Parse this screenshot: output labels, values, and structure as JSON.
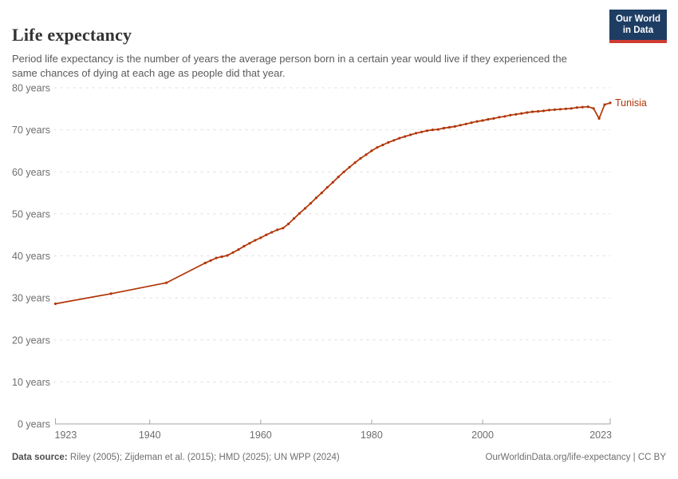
{
  "header": {
    "title": "Life expectancy",
    "subtitle": "Period life expectancy is the number of years the average person born in a certain year would live if they experienced the same chances of dying at each age as people did that year.",
    "logo": {
      "line1": "Our World",
      "line2": "in Data"
    }
  },
  "chart_data": {
    "type": "line",
    "title": "Life expectancy",
    "xlabel": "",
    "ylabel": "",
    "xlim": [
      1923,
      2023
    ],
    "ylim": [
      0,
      80
    ],
    "x_ticks": [
      1923,
      1940,
      1960,
      1980,
      2000,
      2023
    ],
    "y_ticks": [
      0,
      10,
      20,
      30,
      40,
      50,
      60,
      70,
      80
    ],
    "y_tick_suffix": " years",
    "grid": "horizontal-dashed",
    "legend_position": "end-of-line",
    "series": [
      {
        "name": "Tunisia",
        "color": "#b13507",
        "points": [
          [
            1923,
            28.6
          ],
          [
            1933,
            31.0
          ],
          [
            1943,
            33.6
          ],
          [
            1950,
            38.3
          ],
          [
            1951,
            38.9
          ],
          [
            1952,
            39.5
          ],
          [
            1953,
            39.8
          ],
          [
            1954,
            40.1
          ],
          [
            1955,
            40.8
          ],
          [
            1956,
            41.5
          ],
          [
            1957,
            42.3
          ],
          [
            1958,
            43.0
          ],
          [
            1959,
            43.7
          ],
          [
            1960,
            44.3
          ],
          [
            1961,
            45.0
          ],
          [
            1962,
            45.6
          ],
          [
            1963,
            46.2
          ],
          [
            1964,
            46.6
          ],
          [
            1965,
            47.6
          ],
          [
            1966,
            48.9
          ],
          [
            1967,
            50.1
          ],
          [
            1968,
            51.3
          ],
          [
            1969,
            52.5
          ],
          [
            1970,
            53.8
          ],
          [
            1971,
            55.0
          ],
          [
            1972,
            56.3
          ],
          [
            1973,
            57.5
          ],
          [
            1974,
            58.8
          ],
          [
            1975,
            60.0
          ],
          [
            1976,
            61.1
          ],
          [
            1977,
            62.2
          ],
          [
            1978,
            63.2
          ],
          [
            1979,
            64.1
          ],
          [
            1980,
            65.0
          ],
          [
            1981,
            65.8
          ],
          [
            1982,
            66.4
          ],
          [
            1983,
            67.0
          ],
          [
            1984,
            67.5
          ],
          [
            1985,
            68.0
          ],
          [
            1986,
            68.4
          ],
          [
            1987,
            68.8
          ],
          [
            1988,
            69.2
          ],
          [
            1989,
            69.5
          ],
          [
            1990,
            69.8
          ],
          [
            1991,
            70.0
          ],
          [
            1992,
            70.1
          ],
          [
            1993,
            70.4
          ],
          [
            1994,
            70.6
          ],
          [
            1995,
            70.8
          ],
          [
            1996,
            71.1
          ],
          [
            1997,
            71.4
          ],
          [
            1998,
            71.7
          ],
          [
            1999,
            72.0
          ],
          [
            2000,
            72.2
          ],
          [
            2001,
            72.5
          ],
          [
            2002,
            72.7
          ],
          [
            2003,
            73.0
          ],
          [
            2004,
            73.2
          ],
          [
            2005,
            73.5
          ],
          [
            2006,
            73.7
          ],
          [
            2007,
            73.9
          ],
          [
            2008,
            74.1
          ],
          [
            2009,
            74.3
          ],
          [
            2010,
            74.4
          ],
          [
            2011,
            74.5
          ],
          [
            2012,
            74.7
          ],
          [
            2013,
            74.8
          ],
          [
            2014,
            74.9
          ],
          [
            2015,
            75.0
          ],
          [
            2016,
            75.1
          ],
          [
            2017,
            75.3
          ],
          [
            2018,
            75.4
          ],
          [
            2019,
            75.5
          ],
          [
            2020,
            75.1
          ],
          [
            2021,
            72.7
          ],
          [
            2022,
            76.0
          ],
          [
            2023,
            76.4
          ]
        ]
      }
    ]
  },
  "footer": {
    "datasource_label": "Data source:",
    "datasource_text": " Riley (2005); Zijdeman et al. (2015); HMD (2025); UN WPP (2024)",
    "attribution": "OurWorldinData.org/life-expectancy | CC BY"
  },
  "colors": {
    "series": "#b13507",
    "logo_bg": "#1d3d63",
    "logo_underline": "#cf3b32",
    "grid": "#dedede",
    "axis": "#a5a5a5",
    "tick_text": "#6e6e6e"
  }
}
